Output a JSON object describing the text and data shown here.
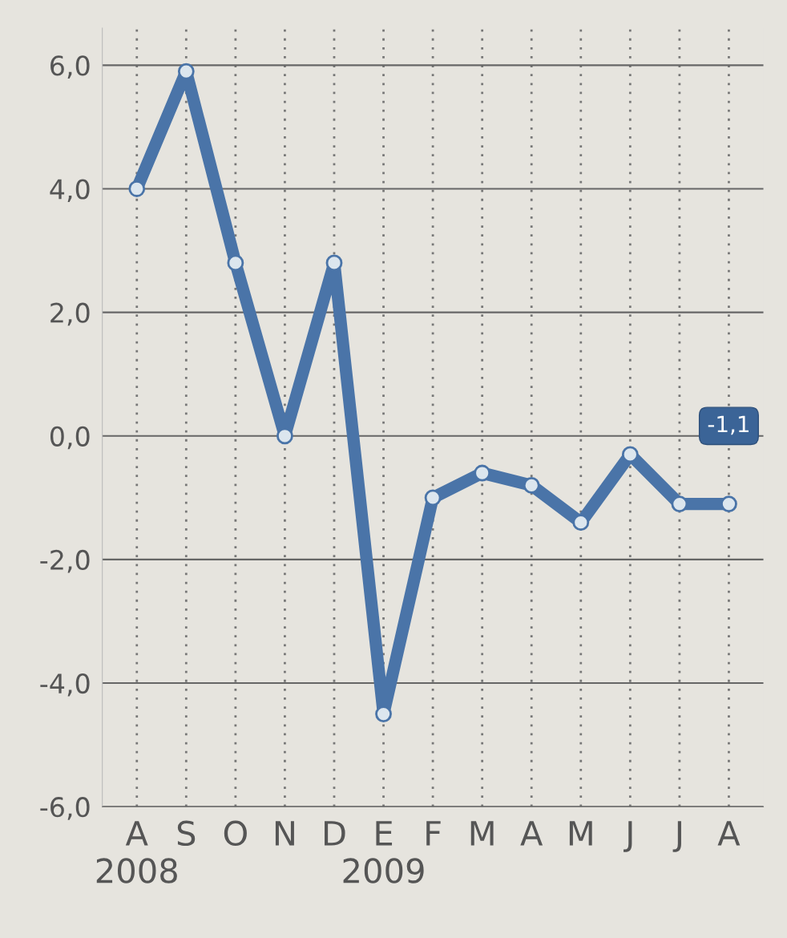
{
  "chart_data": {
    "type": "line",
    "categories": [
      "A\n2008",
      "S",
      "O",
      "N",
      "D",
      "E\n2009",
      "F",
      "M",
      "A",
      "M",
      "J",
      "J",
      "A"
    ],
    "series": [
      {
        "color": "#4a74a8",
        "values": [
          4.0,
          5.9,
          2.8,
          0.0,
          2.8,
          -4.5,
          -1.0,
          -0.6,
          -0.8,
          -1.4,
          -0.3,
          -1.1,
          -1.1
        ],
        "value_labels": [
          null,
          null,
          null,
          null,
          null,
          null,
          null,
          null,
          null,
          null,
          null,
          null,
          "-1,1"
        ]
      }
    ],
    "ylim": [
      -6,
      6.6
    ],
    "yticks": [
      {
        "value": -6,
        "label": "-6,0"
      },
      {
        "value": -4,
        "label": "-4,0"
      },
      {
        "value": -2,
        "label": "-2,0"
      },
      {
        "value": 0,
        "label": "0,0"
      },
      {
        "value": 2,
        "label": "2,0"
      },
      {
        "value": 4,
        "label": "4,0"
      },
      {
        "value": 6,
        "label": "6,0"
      }
    ],
    "grid": true,
    "marker": "circle",
    "line_style": "solid",
    "legend": false
  }
}
